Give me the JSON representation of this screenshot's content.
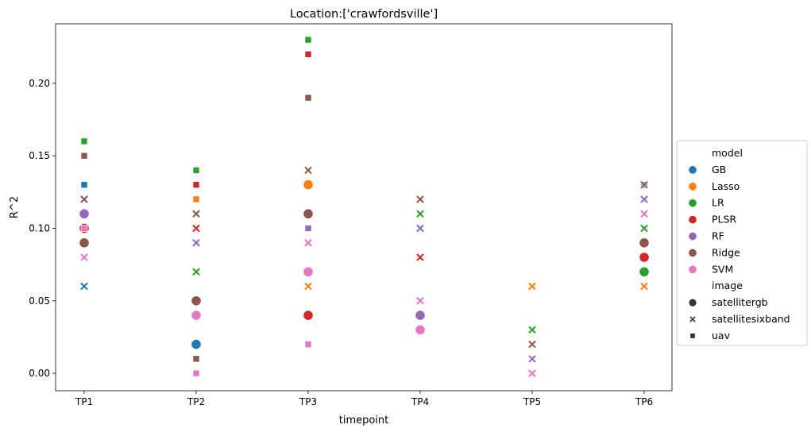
{
  "chart_data": {
    "type": "scatter",
    "title": "Location:['crawfordsville']",
    "xlabel": "timepoint",
    "ylabel": "R^2",
    "categories": [
      "TP1",
      "TP2",
      "TP3",
      "TP4",
      "TP5",
      "TP6"
    ],
    "ylim": [
      -0.012,
      0.241
    ],
    "yticks": [
      0.0,
      0.05,
      0.1,
      0.15,
      0.2
    ],
    "ytick_labels": [
      "0.00",
      "0.05",
      "0.10",
      "0.15",
      "0.20"
    ],
    "grid": false,
    "legend": {
      "placement": "center-right",
      "hue_title": "model",
      "style_title": "image",
      "models": [
        {
          "name": "GB",
          "color": "#1f77b4"
        },
        {
          "name": "Lasso",
          "color": "#ff7f0e"
        },
        {
          "name": "LR",
          "color": "#2ca02c"
        },
        {
          "name": "PLSR",
          "color": "#d62728"
        },
        {
          "name": "RF",
          "color": "#9467bd"
        },
        {
          "name": "Ridge",
          "color": "#8c564b"
        },
        {
          "name": "SVM",
          "color": "#e377c2"
        }
      ],
      "images": [
        {
          "name": "satellitergb",
          "marker": "circle"
        },
        {
          "name": "satellitesixband",
          "marker": "x"
        },
        {
          "name": "uav",
          "marker": "square"
        }
      ]
    },
    "points": [
      {
        "x": "TP1",
        "model": "GB",
        "image": "satellitesixband",
        "y": 0.06
      },
      {
        "x": "TP1",
        "model": "GB",
        "image": "uav",
        "y": 0.13
      },
      {
        "x": "TP1",
        "model": "LR",
        "image": "uav",
        "y": 0.16
      },
      {
        "x": "TP1",
        "model": "PLSR",
        "image": "satellitergb",
        "y": 0.1
      },
      {
        "x": "TP1",
        "model": "RF",
        "image": "satellitergb",
        "y": 0.11
      },
      {
        "x": "TP1",
        "model": "Ridge",
        "image": "satellitesixband",
        "y": 0.12
      },
      {
        "x": "TP1",
        "model": "Ridge",
        "image": "uav",
        "y": 0.15
      },
      {
        "x": "TP1",
        "model": "Ridge",
        "image": "satellitergb",
        "y": 0.09
      },
      {
        "x": "TP1",
        "model": "SVM",
        "image": "uav",
        "y": 0.1
      },
      {
        "x": "TP1",
        "model": "SVM",
        "image": "satellitesixband",
        "y": 0.08
      },
      {
        "x": "TP2",
        "model": "GB",
        "image": "satellitergb",
        "y": 0.02
      },
      {
        "x": "TP2",
        "model": "Lasso",
        "image": "uav",
        "y": 0.12
      },
      {
        "x": "TP2",
        "model": "LR",
        "image": "uav",
        "y": 0.14
      },
      {
        "x": "TP2",
        "model": "LR",
        "image": "satellitesixband",
        "y": 0.07
      },
      {
        "x": "TP2",
        "model": "PLSR",
        "image": "uav",
        "y": 0.13
      },
      {
        "x": "TP2",
        "model": "PLSR",
        "image": "satellitesixband",
        "y": 0.1
      },
      {
        "x": "TP2",
        "model": "RF",
        "image": "satellitesixband",
        "y": 0.09
      },
      {
        "x": "TP2",
        "model": "Ridge",
        "image": "satellitesixband",
        "y": 0.11
      },
      {
        "x": "TP2",
        "model": "Ridge",
        "image": "satellitergb",
        "y": 0.05
      },
      {
        "x": "TP2",
        "model": "Ridge",
        "image": "uav",
        "y": 0.01
      },
      {
        "x": "TP2",
        "model": "SVM",
        "image": "satellitergb",
        "y": 0.04
      },
      {
        "x": "TP2",
        "model": "SVM",
        "image": "uav",
        "y": 0.0
      },
      {
        "x": "TP3",
        "model": "Lasso",
        "image": "satellitergb",
        "y": 0.13
      },
      {
        "x": "TP3",
        "model": "Lasso",
        "image": "satellitesixband",
        "y": 0.06
      },
      {
        "x": "TP3",
        "model": "LR",
        "image": "uav",
        "y": 0.23
      },
      {
        "x": "TP3",
        "model": "PLSR",
        "image": "uav",
        "y": 0.22
      },
      {
        "x": "TP3",
        "model": "PLSR",
        "image": "satellitergb",
        "y": 0.04
      },
      {
        "x": "TP3",
        "model": "RF",
        "image": "uav",
        "y": 0.1
      },
      {
        "x": "TP3",
        "model": "RF",
        "image": "satellitesixband",
        "y": 0.09
      },
      {
        "x": "TP3",
        "model": "Ridge",
        "image": "uav",
        "y": 0.19
      },
      {
        "x": "TP3",
        "model": "Ridge",
        "image": "satellitesixband",
        "y": 0.14
      },
      {
        "x": "TP3",
        "model": "Ridge",
        "image": "satellitergb",
        "y": 0.11
      },
      {
        "x": "TP3",
        "model": "SVM",
        "image": "satellitesixband",
        "y": 0.09
      },
      {
        "x": "TP3",
        "model": "SVM",
        "image": "satellitergb",
        "y": 0.07
      },
      {
        "x": "TP3",
        "model": "SVM",
        "image": "uav",
        "y": 0.02
      },
      {
        "x": "TP4",
        "model": "LR",
        "image": "satellitesixband",
        "y": 0.11
      },
      {
        "x": "TP4",
        "model": "PLSR",
        "image": "satellitesixband",
        "y": 0.08
      },
      {
        "x": "TP4",
        "model": "RF",
        "image": "satellitesixband",
        "y": 0.1
      },
      {
        "x": "TP4",
        "model": "RF",
        "image": "satellitergb",
        "y": 0.04
      },
      {
        "x": "TP4",
        "model": "Ridge",
        "image": "satellitesixband",
        "y": 0.12
      },
      {
        "x": "TP4",
        "model": "SVM",
        "image": "satellitesixband",
        "y": 0.05
      },
      {
        "x": "TP4",
        "model": "SVM",
        "image": "satellitergb",
        "y": 0.03
      },
      {
        "x": "TP5",
        "model": "Lasso",
        "image": "satellitesixband",
        "y": 0.06
      },
      {
        "x": "TP5",
        "model": "LR",
        "image": "satellitesixband",
        "y": 0.03
      },
      {
        "x": "TP5",
        "model": "Ridge",
        "image": "satellitesixband",
        "y": 0.02
      },
      {
        "x": "TP5",
        "model": "RF",
        "image": "satellitesixband",
        "y": 0.01
      },
      {
        "x": "TP5",
        "model": "SVM",
        "image": "satellitesixband",
        "y": 0.0
      },
      {
        "x": "TP6",
        "model": "GB",
        "image": "uav",
        "y": 0.13
      },
      {
        "x": "TP6",
        "model": "Ridge",
        "image": "satellitesixband",
        "y": 0.13
      },
      {
        "x": "TP6",
        "model": "RF",
        "image": "satellitesixband",
        "y": 0.12
      },
      {
        "x": "TP6",
        "model": "SVM",
        "image": "satellitesixband",
        "y": 0.11
      },
      {
        "x": "TP6",
        "model": "LR",
        "image": "satellitesixband",
        "y": 0.1
      },
      {
        "x": "TP6",
        "model": "Ridge",
        "image": "satellitergb",
        "y": 0.09
      },
      {
        "x": "TP6",
        "model": "PLSR",
        "image": "satellitergb",
        "y": 0.08
      },
      {
        "x": "TP6",
        "model": "LR",
        "image": "satellitergb",
        "y": 0.07
      },
      {
        "x": "TP6",
        "model": "Lasso",
        "image": "satellitesixband",
        "y": 0.06
      }
    ]
  }
}
